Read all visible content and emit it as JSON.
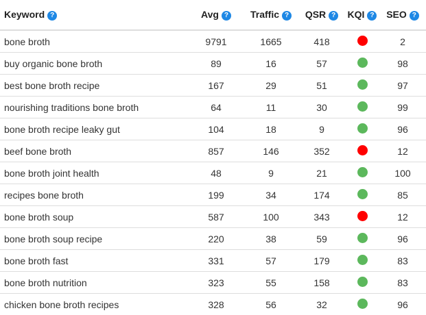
{
  "table": {
    "headers": {
      "keyword": "Keyword",
      "avg": "Avg",
      "traffic": "Traffic",
      "qsr": "QSR",
      "kqi": "KQI",
      "seo": "SEO",
      "help_glyph": "?"
    },
    "colors": {
      "help": "#1e88e5",
      "kqi_good": "#5cb85c",
      "kqi_bad": "#ff0000"
    },
    "rows": [
      {
        "keyword": "bone broth",
        "avg": "9791",
        "traffic": "1665",
        "qsr": "418",
        "kqi": "red",
        "seo": "2"
      },
      {
        "keyword": "buy organic bone broth",
        "avg": "89",
        "traffic": "16",
        "qsr": "57",
        "kqi": "green",
        "seo": "98"
      },
      {
        "keyword": "best bone broth recipe",
        "avg": "167",
        "traffic": "29",
        "qsr": "51",
        "kqi": "green",
        "seo": "97"
      },
      {
        "keyword": "nourishing traditions bone broth",
        "avg": "64",
        "traffic": "11",
        "qsr": "30",
        "kqi": "green",
        "seo": "99"
      },
      {
        "keyword": "bone broth recipe leaky gut",
        "avg": "104",
        "traffic": "18",
        "qsr": "9",
        "kqi": "green",
        "seo": "96"
      },
      {
        "keyword": "beef bone broth",
        "avg": "857",
        "traffic": "146",
        "qsr": "352",
        "kqi": "red",
        "seo": "12"
      },
      {
        "keyword": "bone broth joint health",
        "avg": "48",
        "traffic": "9",
        "qsr": "21",
        "kqi": "green",
        "seo": "100"
      },
      {
        "keyword": "recipes bone broth",
        "avg": "199",
        "traffic": "34",
        "qsr": "174",
        "kqi": "green",
        "seo": "85"
      },
      {
        "keyword": "bone broth soup",
        "avg": "587",
        "traffic": "100",
        "qsr": "343",
        "kqi": "red",
        "seo": "12"
      },
      {
        "keyword": "bone broth soup recipe",
        "avg": "220",
        "traffic": "38",
        "qsr": "59",
        "kqi": "green",
        "seo": "96"
      },
      {
        "keyword": "bone broth fast",
        "avg": "331",
        "traffic": "57",
        "qsr": "179",
        "kqi": "green",
        "seo": "83"
      },
      {
        "keyword": "bone broth nutrition",
        "avg": "323",
        "traffic": "55",
        "qsr": "158",
        "kqi": "green",
        "seo": "83"
      },
      {
        "keyword": "chicken bone broth recipes",
        "avg": "328",
        "traffic": "56",
        "qsr": "32",
        "kqi": "green",
        "seo": "96"
      }
    ]
  }
}
